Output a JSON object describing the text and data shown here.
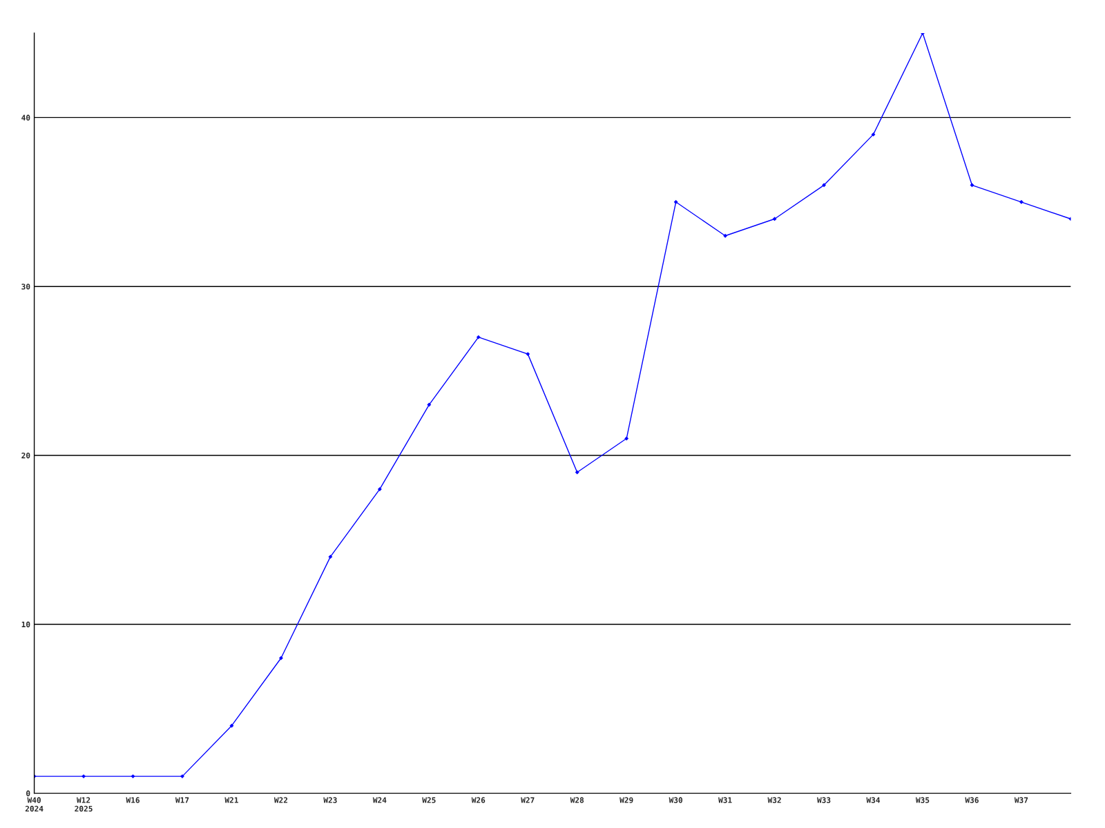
{
  "chart_data": {
    "type": "line",
    "categories": [
      "W40\n2024",
      "W12\n2025",
      "W16",
      "W17",
      "W21",
      "W22",
      "W23",
      "W24",
      "W25",
      "W26",
      "W27",
      "W28",
      "W29",
      "W30",
      "W31",
      "W32",
      "W33",
      "W34",
      "W35",
      "W36",
      "W37",
      null
    ],
    "series": [
      {
        "color": "#0000ff",
        "values": [
          1,
          1,
          1,
          1,
          4,
          8,
          14,
          18,
          23,
          27,
          26,
          19,
          21,
          35,
          33,
          34,
          36,
          39,
          45,
          36,
          35,
          34
        ]
      }
    ],
    "ylim": [
      0,
      45
    ],
    "yticks": [
      0,
      10,
      20,
      30,
      40
    ],
    "grid": "y",
    "marker": "diamond",
    "line_style": "solid",
    "legend": false
  }
}
